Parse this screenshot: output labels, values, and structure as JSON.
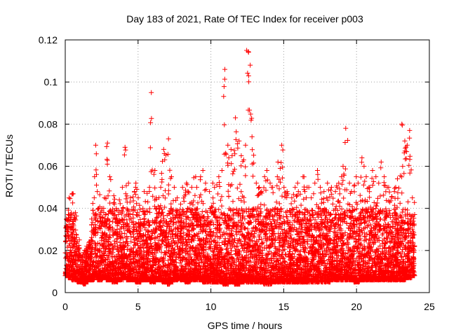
{
  "chart_data": {
    "type": "scatter",
    "title": "Day 183 of 2021, Rate Of TEC Index for receiver p003",
    "xlabel": "GPS time / hours",
    "ylabel": "ROTI / TECUs",
    "xlim": [
      0,
      25
    ],
    "ylim": [
      0,
      0.12
    ],
    "xticks": [
      "0",
      "5",
      "10",
      "15",
      "20",
      "25"
    ],
    "yticks": [
      "0",
      "0.02",
      "0.04",
      "0.06",
      "0.08",
      "0.1",
      "0.12"
    ],
    "grid": true,
    "marker": "plus",
    "color": "#ff0000",
    "series": [
      {
        "x": [
          0.0,
          0.2,
          0.4,
          0.6,
          0.8,
          1.0,
          1.2,
          1.4,
          1.6,
          1.8,
          2.0,
          2.2,
          2.4,
          2.6,
          2.8,
          3.0,
          3.2,
          3.4,
          3.6,
          3.8,
          4.0,
          4.2,
          4.4,
          4.6,
          4.8,
          5.0,
          5.2,
          5.4,
          5.6,
          5.8,
          6.0,
          6.2,
          6.4,
          6.6,
          6.8,
          7.0,
          7.2,
          7.4,
          7.6,
          7.8,
          8.0,
          8.2,
          8.4,
          8.6,
          8.8,
          9.0,
          9.2,
          9.4,
          9.6,
          9.8,
          10.0,
          10.2,
          10.4,
          10.6,
          10.8,
          11.0,
          11.2,
          11.4,
          11.6,
          11.8,
          12.0,
          12.2,
          12.4,
          12.6,
          12.8,
          13.0,
          13.2,
          13.4,
          13.6,
          13.8,
          14.0,
          14.2,
          14.4,
          14.6,
          14.8,
          15.0,
          15.2,
          15.4,
          15.6,
          15.8,
          16.0,
          16.2,
          16.4,
          16.6,
          16.8,
          17.0,
          17.2,
          17.4,
          17.6,
          17.8,
          18.0,
          18.2,
          18.4,
          18.6,
          18.8,
          19.0,
          19.2,
          19.4,
          19.6,
          19.8,
          20.0,
          20.2,
          20.4,
          20.6,
          20.8,
          21.0,
          21.2,
          21.4,
          21.6,
          21.8,
          22.0,
          22.2,
          22.4,
          22.6,
          22.8,
          23.0,
          23.2,
          23.4,
          23.6,
          23.8
        ],
        "y_low": [
          0.008,
          0.007,
          0.006,
          0.006,
          0.005,
          0.005,
          0.004,
          0.005,
          0.006,
          0.006,
          0.007,
          0.006,
          0.006,
          0.007,
          0.006,
          0.006,
          0.005,
          0.005,
          0.006,
          0.006,
          0.007,
          0.006,
          0.006,
          0.006,
          0.005,
          0.005,
          0.006,
          0.006,
          0.006,
          0.005,
          0.005,
          0.006,
          0.006,
          0.005,
          0.005,
          0.004,
          0.005,
          0.006,
          0.006,
          0.006,
          0.006,
          0.005,
          0.005,
          0.006,
          0.006,
          0.006,
          0.006,
          0.005,
          0.005,
          0.005,
          0.005,
          0.005,
          0.005,
          0.005,
          0.004,
          0.004,
          0.005,
          0.005,
          0.004,
          0.004,
          0.005,
          0.005,
          0.005,
          0.005,
          0.005,
          0.005,
          0.005,
          0.005,
          0.004,
          0.004,
          0.004,
          0.005,
          0.005,
          0.005,
          0.005,
          0.005,
          0.005,
          0.005,
          0.005,
          0.005,
          0.005,
          0.005,
          0.005,
          0.005,
          0.005,
          0.005,
          0.005,
          0.005,
          0.005,
          0.005,
          0.005,
          0.006,
          0.006,
          0.006,
          0.006,
          0.006,
          0.006,
          0.006,
          0.006,
          0.005,
          0.005,
          0.006,
          0.006,
          0.006,
          0.006,
          0.006,
          0.006,
          0.006,
          0.006,
          0.006,
          0.006,
          0.006,
          0.006,
          0.006,
          0.006,
          0.006,
          0.006,
          0.007,
          0.007,
          0.008
        ],
        "y_high": [
          0.035,
          0.045,
          0.047,
          0.038,
          0.025,
          0.018,
          0.02,
          0.022,
          0.025,
          0.045,
          0.07,
          0.048,
          0.04,
          0.045,
          0.071,
          0.055,
          0.046,
          0.04,
          0.044,
          0.05,
          0.069,
          0.052,
          0.045,
          0.048,
          0.052,
          0.045,
          0.04,
          0.048,
          0.05,
          0.095,
          0.058,
          0.045,
          0.05,
          0.068,
          0.066,
          0.073,
          0.055,
          0.05,
          0.045,
          0.042,
          0.05,
          0.052,
          0.048,
          0.05,
          0.055,
          0.05,
          0.055,
          0.058,
          0.052,
          0.048,
          0.052,
          0.05,
          0.055,
          0.058,
          0.106,
          0.07,
          0.068,
          0.065,
          0.083,
          0.072,
          0.065,
          0.07,
          0.115,
          0.108,
          0.074,
          0.052,
          0.05,
          0.048,
          0.055,
          0.058,
          0.052,
          0.05,
          0.055,
          0.062,
          0.07,
          0.05,
          0.048,
          0.045,
          0.05,
          0.052,
          0.048,
          0.055,
          0.048,
          0.05,
          0.045,
          0.052,
          0.058,
          0.05,
          0.048,
          0.045,
          0.052,
          0.05,
          0.048,
          0.052,
          0.055,
          0.06,
          0.078,
          0.052,
          0.048,
          0.055,
          0.052,
          0.064,
          0.06,
          0.055,
          0.05,
          0.058,
          0.055,
          0.052,
          0.062,
          0.055,
          0.05,
          0.05,
          0.048,
          0.05,
          0.054,
          0.08,
          0.072,
          0.07,
          0.077,
          0.045
        ]
      }
    ]
  }
}
